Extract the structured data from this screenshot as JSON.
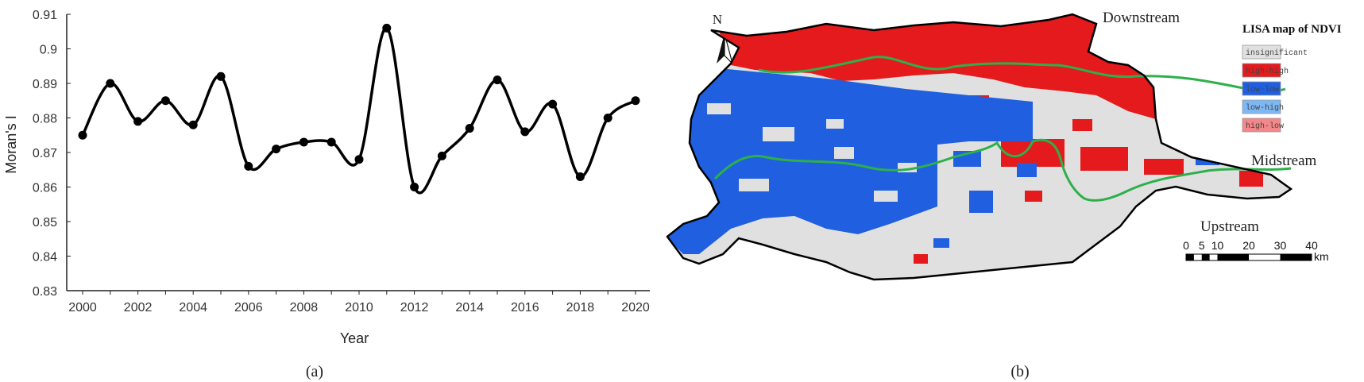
{
  "chart_data": {
    "type": "line",
    "title": "",
    "xlabel": "Year",
    "ylabel": "Moran's I",
    "xlim": [
      2000,
      2020
    ],
    "ylim": [
      0.83,
      0.91
    ],
    "grid": false,
    "x": [
      2000,
      2001,
      2002,
      2003,
      2004,
      2005,
      2006,
      2007,
      2008,
      2009,
      2010,
      2011,
      2012,
      2013,
      2014,
      2015,
      2016,
      2017,
      2018,
      2019,
      2020
    ],
    "values": [
      0.875,
      0.89,
      0.879,
      0.885,
      0.878,
      0.892,
      0.866,
      0.871,
      0.873,
      0.873,
      0.868,
      0.906,
      0.86,
      0.869,
      0.877,
      0.891,
      0.876,
      0.884,
      0.863,
      0.88,
      0.885
    ],
    "x_ticks": [
      "2000",
      "2002",
      "2004",
      "2006",
      "2008",
      "2010",
      "2012",
      "2014",
      "2016",
      "2018",
      "2020"
    ],
    "y_ticks": [
      "0.83",
      "0.84",
      "0.85",
      "0.86",
      "0.87",
      "0.88",
      "0.89",
      "0.9",
      "0.91"
    ],
    "line_color": "#000000"
  },
  "captions": {
    "a": "(a)",
    "b": "(b)"
  },
  "map": {
    "north_label": "N",
    "labels": {
      "downstream": "Downstream",
      "midstream": "Midstream",
      "upstream": "Upstream"
    },
    "legend_title": "LISA map of NDVI",
    "legend": [
      {
        "label": "insignificant",
        "color": "#e0e0e0"
      },
      {
        "label": "high-high",
        "color": "#e41a1c"
      },
      {
        "label": "low-low",
        "color": "#1f5fe0"
      },
      {
        "label": "low-high",
        "color": "#7db8f5"
      },
      {
        "label": "high-low",
        "color": "#f4878a"
      }
    ],
    "river_color": "#2db04b",
    "scale_ticks": [
      "0",
      "5",
      "10",
      "20",
      "30",
      "40"
    ],
    "scale_unit": "km"
  }
}
